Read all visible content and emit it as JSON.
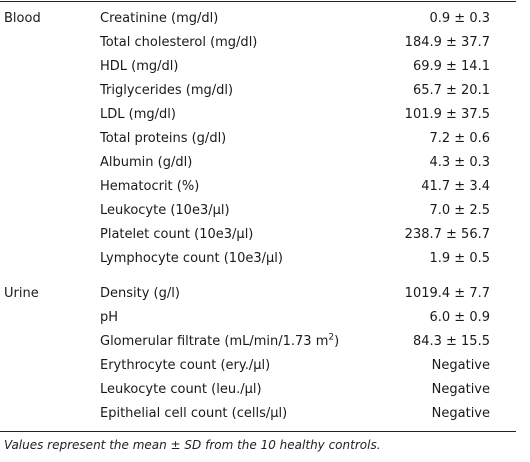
{
  "table": {
    "groups": [
      {
        "label": "Blood",
        "rows": [
          {
            "param": "Creatinine (mg/dl)",
            "value": "0.9 ± 0.3"
          },
          {
            "param": "Total cholesterol (mg/dl)",
            "value": "184.9 ± 37.7"
          },
          {
            "param": "HDL (mg/dl)",
            "value": "69.9 ± 14.1"
          },
          {
            "param": "Triglycerides (mg/dl)",
            "value": "65.7 ± 20.1"
          },
          {
            "param": "LDL (mg/dl)",
            "value": "101.9 ± 37.5"
          },
          {
            "param": "Total proteins (g/dl)",
            "value": "7.2 ± 0.6"
          },
          {
            "param": "Albumin (g/dl)",
            "value": "4.3 ± 0.3"
          },
          {
            "param": "Hematocrit (%)",
            "value": "41.7 ± 3.4"
          },
          {
            "param": "Leukocyte (10e3/µl)",
            "value": "7.0 ± 2.5"
          },
          {
            "param": "Platelet count (10e3/µl)",
            "value": "238.7 ± 56.7"
          },
          {
            "param": "Lymphocyte count (10e3/µl)",
            "value": "1.9 ± 0.5"
          }
        ]
      },
      {
        "label": "Urine",
        "rows": [
          {
            "param": "Density (g/l)",
            "value": "1019.4 ± 7.7"
          },
          {
            "param": "pH",
            "value": "6.0 ± 0.9"
          },
          {
            "param_base": "Glomerular filtrate (mL/min/1.73 m",
            "param_sup": "2",
            "param_end": ")",
            "value": "84.3 ± 15.5"
          },
          {
            "param": "Erythrocyte count (ery./µl)",
            "value": "Negative"
          },
          {
            "param": "Leukocyte count (leu./µl)",
            "value": "Negative"
          },
          {
            "param": "Epithelial cell count (cells/µl)",
            "value": "Negative"
          }
        ]
      }
    ]
  },
  "caption": "Values represent the mean ± SD from the 10 healthy controls."
}
